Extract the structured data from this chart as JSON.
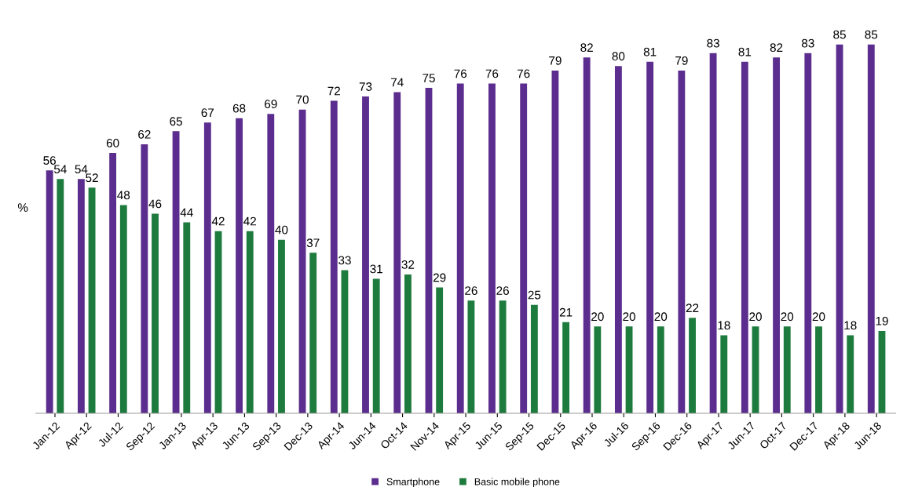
{
  "chart_data": {
    "type": "bar",
    "ylabel": "%",
    "categories": [
      "Jan-12",
      "Apr-12",
      "Jul-12",
      "Sep-12",
      "Jan-13",
      "Apr-13",
      "Jun-13",
      "Sep-13",
      "Dec-13",
      "Apr-14",
      "Jun-14",
      "Oct-14",
      "Nov-14",
      "Apr-15",
      "Jun-15",
      "Sep-15",
      "Dec-15",
      "Apr-16",
      "Jul-16",
      "Sep-16",
      "Dec-16",
      "Apr-17",
      "Jun-17",
      "Oct-17",
      "Dec-17",
      "Apr-18",
      "Jun-18"
    ],
    "series": [
      {
        "name": "Smartphone",
        "color": "#5b2d8e",
        "values": [
          56,
          54,
          60,
          62,
          65,
          67,
          68,
          69,
          70,
          72,
          73,
          74,
          75,
          76,
          76,
          76,
          79,
          82,
          80,
          81,
          79,
          83,
          81,
          82,
          83,
          85,
          85
        ]
      },
      {
        "name": "Basic mobile phone",
        "color": "#1e7b3e",
        "values": [
          54,
          52,
          48,
          46,
          44,
          42,
          42,
          40,
          37,
          33,
          31,
          32,
          29,
          26,
          26,
          25,
          21,
          20,
          20,
          20,
          22,
          18,
          20,
          20,
          20,
          18,
          19
        ]
      }
    ],
    "data_labels": true,
    "legend": "bottom",
    "grid": false
  }
}
